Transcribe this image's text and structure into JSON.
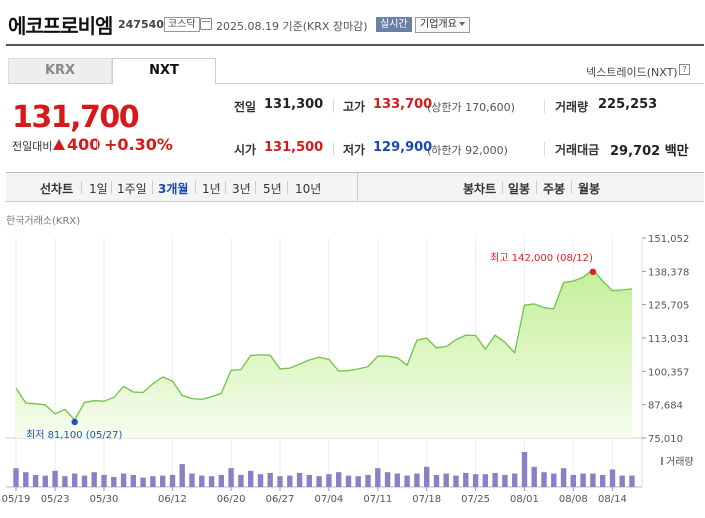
{
  "header": {
    "company_name": "에코프로비엠",
    "code": "247540",
    "market": "코스닥",
    "date_text": "2025.08.19 기준(KRX 장마감)",
    "live_button": "실시간",
    "company_info_button": "기업개요"
  },
  "tabs": [
    {
      "label": "KRX",
      "active": false
    },
    {
      "label": "NXT",
      "active": true
    }
  ],
  "nxt_link": "넥스트레이드(NXT)",
  "help_glyph": "?",
  "quote": {
    "price": "131,700",
    "change_label": "전일대비",
    "change_value": "400",
    "change_pct": "+0.30%",
    "prev_close_label": "전일",
    "prev_close": "131,300",
    "high_label": "고가",
    "high": "133,700",
    "upper_limit": "(상한가 170,600)",
    "volume_label": "거래량",
    "volume": "225,253",
    "open_label": "시가",
    "open": "131,500",
    "low_label": "저가",
    "low": "129,900",
    "lower_limit": "(하한가 92,000)",
    "amount_label": "거래대금",
    "amount": "29,702 백만",
    "up_color": "#d7191a",
    "down_color": "#1a49b5"
  },
  "line_chart_label": "선차트",
  "ranges": [
    "1일",
    "1주일",
    "3개월",
    "1년",
    "3년",
    "5년",
    "10년"
  ],
  "active_range": "3개월",
  "candle_chart_label": "봉차트",
  "candle_ranges": [
    "일봉",
    "주봉",
    "월봉"
  ],
  "chart_source": "한국거래소(KRX)",
  "chart_data": {
    "type": "area",
    "x": [
      "05/19",
      "05/20",
      "05/21",
      "05/22",
      "05/23",
      "05/26",
      "05/27",
      "05/28",
      "05/29",
      "05/30",
      "06/02",
      "06/04",
      "06/05",
      "06/09",
      "06/10",
      "06/11",
      "06/12",
      "06/13",
      "06/16",
      "06/17",
      "06/18",
      "06/19",
      "06/20",
      "06/23",
      "06/24",
      "06/25",
      "06/26",
      "06/27",
      "06/30",
      "07/01",
      "07/02",
      "07/03",
      "07/04",
      "07/07",
      "07/08",
      "07/09",
      "07/10",
      "07/11",
      "07/14",
      "07/15",
      "07/16",
      "07/17",
      "07/18",
      "07/21",
      "07/22",
      "07/23",
      "07/24",
      "07/25",
      "07/28",
      "07/29",
      "07/30",
      "07/31",
      "08/01",
      "08/04",
      "08/05",
      "08/06",
      "08/07",
      "08/08",
      "08/11",
      "08/12",
      "08/13",
      "08/14",
      "08/18",
      "08/19"
    ],
    "close": [
      94000,
      88300,
      88000,
      87600,
      84200,
      85900,
      81900,
      88500,
      89200,
      89000,
      90400,
      94600,
      92500,
      92300,
      95600,
      98200,
      96700,
      91200,
      90000,
      89700,
      90700,
      92000,
      100800,
      101000,
      106400,
      106600,
      106500,
      101300,
      101600,
      103100,
      104700,
      105700,
      104900,
      100500,
      100600,
      101300,
      102100,
      106100,
      106100,
      105500,
      102700,
      112200,
      113000,
      109300,
      109800,
      112400,
      114100,
      114000,
      108800,
      114100,
      111400,
      107400,
      125500,
      126000,
      124600,
      124100,
      134100,
      134700,
      136100,
      139000,
      134700,
      131000,
      131300,
      131700
    ],
    "volume": [
      28,
      22,
      18,
      17,
      24,
      16,
      20,
      17,
      22,
      18,
      15,
      20,
      18,
      14,
      16,
      17,
      18,
      34,
      20,
      17,
      16,
      18,
      28,
      18,
      24,
      19,
      21,
      16,
      17,
      21,
      18,
      16,
      19,
      22,
      17,
      16,
      18,
      28,
      22,
      20,
      17,
      20,
      30,
      18,
      20,
      17,
      21,
      19,
      19,
      21,
      18,
      20,
      52,
      30,
      22,
      20,
      28,
      18,
      20,
      20,
      18,
      26,
      17,
      17
    ],
    "y_ticks": [
      "151,052",
      "138,378",
      "125,705",
      "113,031",
      "100,357",
      "87,684",
      "75,010"
    ],
    "x_ticks": [
      "05/19",
      "05/23",
      "05/30",
      "06/12",
      "06/20",
      "06/27",
      "07/04",
      "07/11",
      "07/18",
      "07/25",
      "08/01",
      "08/08",
      "08/14"
    ],
    "ylim": [
      75010,
      151052
    ],
    "max_label": "최고 142,000 (08/12)",
    "max_date": "08/12",
    "max_value": 142000,
    "min_label": "최저 81,100 (05/27)",
    "min_date": "05/27",
    "min_value": 81100,
    "volume_legend": "거래량",
    "colors": {
      "line": "#71c24a",
      "fill_top": "#c5ef99",
      "fill_bottom": "#f6fdee",
      "volume_bar": "#8c7fc6",
      "max_dot": "#e02020",
      "min_dot": "#2050c0"
    }
  }
}
